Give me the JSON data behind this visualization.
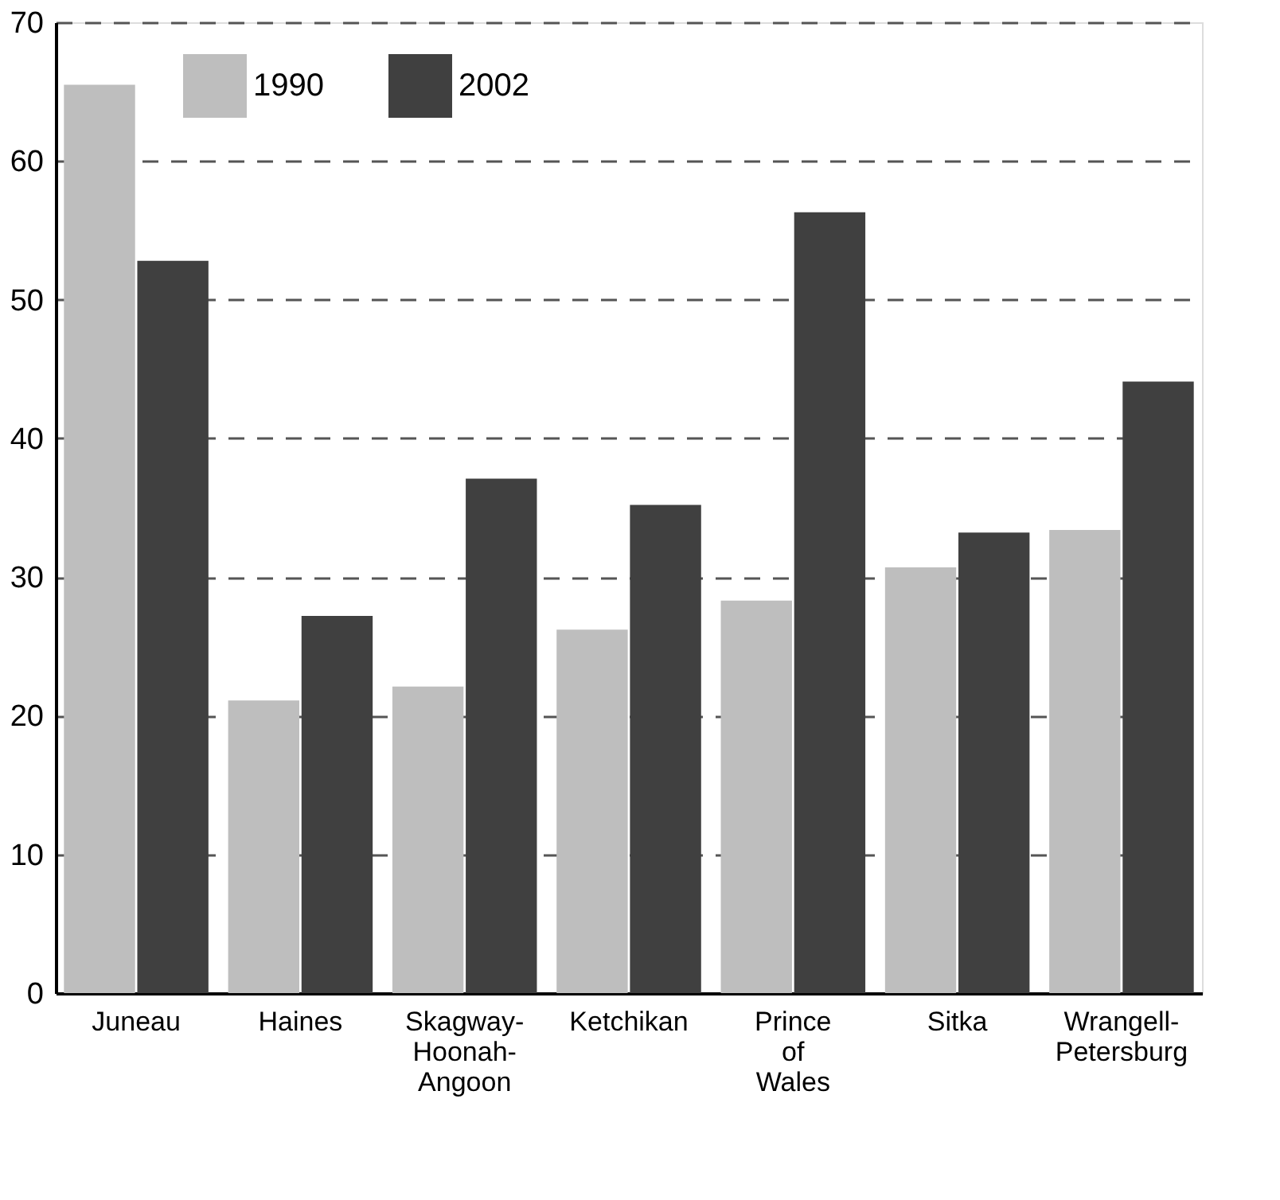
{
  "chart_data": {
    "type": "bar",
    "categories": [
      "Juneau",
      "Haines",
      "Skagway-Hoonah-Angoon",
      "Ketchikan",
      "Prince of Wales",
      "Sitka",
      "Wrangell-Petersburg"
    ],
    "series": [
      {
        "name": "1990",
        "color": "#bebebe",
        "values": [
          65.5,
          21.1,
          22.1,
          26.2,
          28.3,
          30.7,
          33.4
        ]
      },
      {
        "name": "2002",
        "color": "#404040",
        "values": [
          52.8,
          27.2,
          37.1,
          35.2,
          56.3,
          33.2,
          44.1
        ]
      }
    ],
    "ylim": [
      0,
      70
    ],
    "yticks": [
      0,
      10,
      20,
      30,
      40,
      50,
      60,
      70
    ],
    "grid": "y",
    "line_style": "dashed",
    "legend": "top left"
  }
}
